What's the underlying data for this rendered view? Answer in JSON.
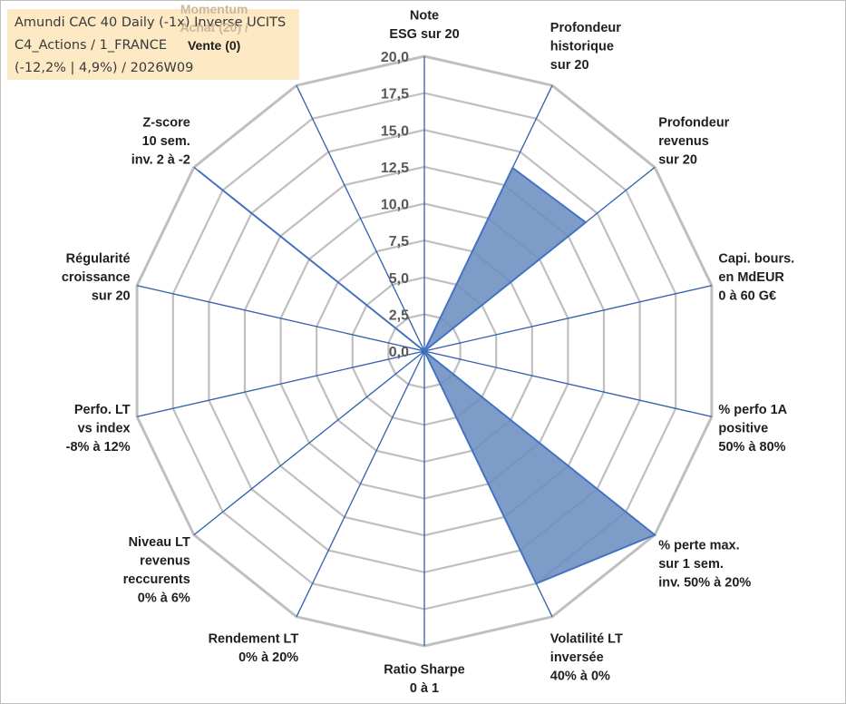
{
  "info_box": {
    "line1": "Amundi CAC 40 Daily (-1x) Inverse UCITS",
    "line2": "C4_Actions / 1_FRANCE",
    "line3": "(-12,2% | 4,9%) / 2026W09"
  },
  "colors": {
    "grid": "#bfbfbf",
    "spoke": "#2f5fad",
    "fill": "#6b8ebf",
    "stroke": "#4472c4",
    "info_bg": "#fde9c4"
  },
  "chart_data": {
    "type": "radar",
    "rmin": 0,
    "rmax": 20,
    "ring_step": 2.5,
    "tick_labels": [
      "0,0",
      "2,5",
      "5,0",
      "7,5",
      "10,0",
      "12,5",
      "15,0",
      "17,5",
      "20,0"
    ],
    "axes": [
      [
        "Note",
        "ESG sur 20"
      ],
      [
        "Profondeur",
        "historique",
        "sur 20"
      ],
      [
        "Profondeur",
        "revenus",
        "sur 20"
      ],
      [
        "Capi. bours.",
        "en MdEUR",
        "0 à 60 G€"
      ],
      [
        "% perfo 1A",
        "positive",
        "50% à 80%"
      ],
      [
        "% perte max.",
        "sur 1 sem.",
        "inv. 50% à 20%"
      ],
      [
        "Volatilité LT",
        "inversée",
        "40% à 0%"
      ],
      [
        "Ratio Sharpe",
        "0 à 1"
      ],
      [
        "Rendement LT",
        "0% à 20%"
      ],
      [
        "Niveau LT",
        "revenus",
        "reccurents",
        "0% à 6%"
      ],
      [
        "Perfo. LT",
        "vs index",
        "-8% à 12%"
      ],
      [
        "Régularité",
        "croissance",
        "sur 20"
      ],
      [
        "Z-score",
        "10 sem.",
        "inv. 2 à -2"
      ],
      [
        "Momentum",
        "Achat (20) /",
        "Vente (0)"
      ]
    ],
    "series": [
      {
        "values": [
          0,
          13.8,
          14.0,
          0,
          0,
          20,
          17.5,
          0,
          0,
          0,
          0,
          0,
          19.6,
          0
        ]
      }
    ]
  }
}
